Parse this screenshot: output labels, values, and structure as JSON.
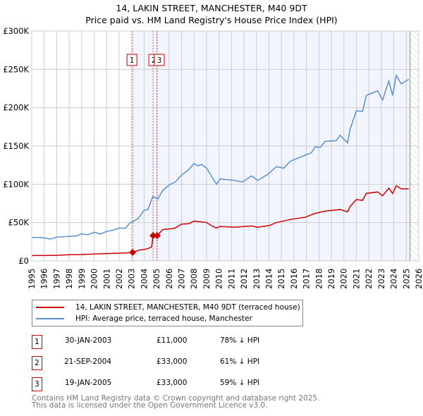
{
  "chart_data": {
    "type": "line",
    "title": "14, LAKIN STREET, MANCHESTER, M40 9DT",
    "subtitle": "Price paid vs. HM Land Registry's House Price Index (HPI)",
    "xlim": [
      1995,
      2026
    ],
    "ylim": [
      0,
      300000
    ],
    "y_ticks": [
      {
        "v": 0,
        "label": "£0"
      },
      {
        "v": 50000,
        "label": "£50K"
      },
      {
        "v": 100000,
        "label": "£100K"
      },
      {
        "v": 150000,
        "label": "£150K"
      },
      {
        "v": 200000,
        "label": "£200K"
      },
      {
        "v": 250000,
        "label": "£250K"
      },
      {
        "v": 300000,
        "label": "£300K"
      }
    ],
    "x_ticks": [
      "1995",
      "1996",
      "1997",
      "1998",
      "1999",
      "2000",
      "2001",
      "2002",
      "2003",
      "2004",
      "2005",
      "2006",
      "2007",
      "2008",
      "2009",
      "2010",
      "2011",
      "2012",
      "2013",
      "2014",
      "2015",
      "2016",
      "2017",
      "2018",
      "2019",
      "2020",
      "2021",
      "2022",
      "2023",
      "2024",
      "2025",
      "2026"
    ],
    "grid": true,
    "shaded_range": [
      2003.08,
      2025.3
    ],
    "hatched_from": 2025.3,
    "series": [
      {
        "name": "14, LAKIN STREET, MANCHESTER, M40 9DT (terraced house)",
        "color": "#cc0000",
        "points": [
          [
            1995,
            7000
          ],
          [
            1996,
            7000
          ],
          [
            1997,
            7200
          ],
          [
            1998,
            8000
          ],
          [
            1999,
            8300
          ],
          [
            2000,
            9000
          ],
          [
            2001,
            9500
          ],
          [
            2002,
            10000
          ],
          [
            2002.6,
            10500
          ],
          [
            2003.08,
            11000
          ],
          [
            2003.6,
            14000
          ],
          [
            2004.2,
            15500
          ],
          [
            2004.6,
            18000
          ],
          [
            2004.72,
            33000
          ],
          [
            2005.05,
            33000
          ],
          [
            2005.5,
            41000
          ],
          [
            2006.2,
            42000
          ],
          [
            2006.5,
            43000
          ],
          [
            2007,
            48000
          ],
          [
            2007.6,
            48500
          ],
          [
            2008,
            52000
          ],
          [
            2008.5,
            51000
          ],
          [
            2009,
            50000
          ],
          [
            2009.5,
            45000
          ],
          [
            2009.8,
            43000
          ],
          [
            2010.1,
            45000
          ],
          [
            2011.2,
            44000
          ],
          [
            2012.6,
            45600
          ],
          [
            2013.1,
            44000
          ],
          [
            2014,
            46000
          ],
          [
            2014.6,
            50000
          ],
          [
            2015.7,
            54000
          ],
          [
            2016.9,
            57000
          ],
          [
            2017.7,
            62000
          ],
          [
            2018.5,
            65000
          ],
          [
            2019.7,
            67000
          ],
          [
            2020.3,
            64000
          ],
          [
            2020.5,
            71000
          ],
          [
            2021,
            80000
          ],
          [
            2021.5,
            79000
          ],
          [
            2021.8,
            88000
          ],
          [
            2022.7,
            90000
          ],
          [
            2023.1,
            85000
          ],
          [
            2023.6,
            95000
          ],
          [
            2023.9,
            88000
          ],
          [
            2024.2,
            98000
          ],
          [
            2024.6,
            94000
          ],
          [
            2025.2,
            94000
          ]
        ]
      },
      {
        "name": "HPI: Average price, terraced house, Manchester",
        "color": "#5b8fd0",
        "points": [
          [
            1995,
            30700
          ],
          [
            1995.8,
            30500
          ],
          [
            1996.5,
            28500
          ],
          [
            1997,
            31000
          ],
          [
            1998,
            32000
          ],
          [
            1998.6,
            32500
          ],
          [
            1999,
            35500
          ],
          [
            1999.5,
            34000
          ],
          [
            2000,
            37500
          ],
          [
            2000.5,
            35000
          ],
          [
            2001,
            38500
          ],
          [
            2001.5,
            40000
          ],
          [
            2002,
            43000
          ],
          [
            2002.5,
            42500
          ],
          [
            2002.9,
            50000
          ],
          [
            2003.08,
            51000
          ],
          [
            2003.5,
            55000
          ],
          [
            2004,
            66000
          ],
          [
            2004.3,
            67000
          ],
          [
            2004.7,
            84000
          ],
          [
            2005.1,
            81000
          ],
          [
            2005.5,
            92000
          ],
          [
            2006,
            99000
          ],
          [
            2006.5,
            103000
          ],
          [
            2007,
            112000
          ],
          [
            2007.5,
            118000
          ],
          [
            2008,
            127000
          ],
          [
            2008.3,
            124000
          ],
          [
            2008.6,
            126000
          ],
          [
            2009,
            121000
          ],
          [
            2009.5,
            108000
          ],
          [
            2009.8,
            100000
          ],
          [
            2010.1,
            107000
          ],
          [
            2011.2,
            105000
          ],
          [
            2011.9,
            103000
          ],
          [
            2012.6,
            111000
          ],
          [
            2013.1,
            105000
          ],
          [
            2013.9,
            113000
          ],
          [
            2014.6,
            123000
          ],
          [
            2015.2,
            121000
          ],
          [
            2015.7,
            130000
          ],
          [
            2016.9,
            138000
          ],
          [
            2017.4,
            141000
          ],
          [
            2017.7,
            149000
          ],
          [
            2018.1,
            148000
          ],
          [
            2018.5,
            156000
          ],
          [
            2019.4,
            157000
          ],
          [
            2019.7,
            164000
          ],
          [
            2020.3,
            154000
          ],
          [
            2020.5,
            172000
          ],
          [
            2021,
            196000
          ],
          [
            2021.5,
            195000
          ],
          [
            2021.8,
            216000
          ],
          [
            2022.7,
            222000
          ],
          [
            2023.1,
            210000
          ],
          [
            2023.6,
            235000
          ],
          [
            2023.9,
            216000
          ],
          [
            2024.2,
            242000
          ],
          [
            2024.6,
            231000
          ],
          [
            2025.2,
            237000
          ]
        ]
      }
    ],
    "sales": [
      {
        "id": "1",
        "year": 2003.08,
        "price": 11000
      },
      {
        "id": "2",
        "year": 2004.72,
        "price": 33000
      },
      {
        "id": "3",
        "year": 2005.05,
        "price": 33000
      }
    ]
  },
  "legend": {
    "property": "14, LAKIN STREET, MANCHESTER, M40 9DT (terraced house)",
    "hpi": "HPI: Average price, terraced house, Manchester"
  },
  "transactions": [
    {
      "id": "1",
      "date": "30-JAN-2003",
      "price": "£11,000",
      "hpi": "78% ↓ HPI"
    },
    {
      "id": "2",
      "date": "21-SEP-2004",
      "price": "£33,000",
      "hpi": "61% ↓ HPI"
    },
    {
      "id": "3",
      "date": "19-JAN-2005",
      "price": "£33,000",
      "hpi": "59% ↓ HPI"
    }
  ],
  "footer": {
    "line1": "Contains HM Land Registry data © Crown copyright and database right 2025.",
    "line2": "This data is licensed under the Open Government Licence v3.0."
  }
}
